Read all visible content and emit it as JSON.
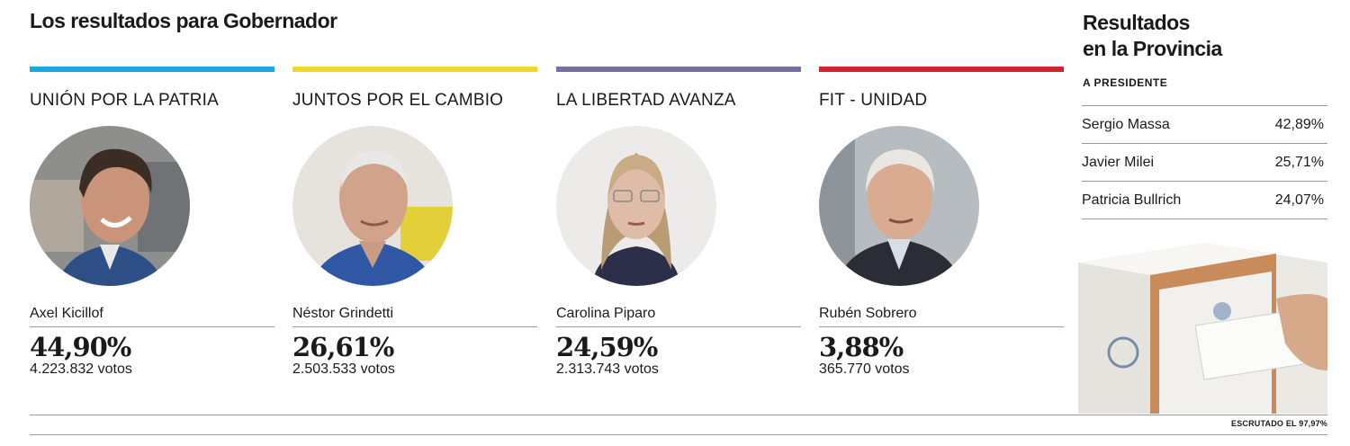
{
  "header": {
    "title": "Los resultados para Gobernador"
  },
  "candidates": [
    {
      "party": "UNIÓN POR LA PATRIA",
      "color": "#1ba9dc",
      "name": "Axel Kicillof",
      "pct": "44,90%",
      "votes": "4.223.832 votos"
    },
    {
      "party": "JUNTOS POR EL CAMBIO",
      "color": "#f3d927",
      "name": "Néstor Grindetti",
      "pct": "26,61%",
      "votes": "2.503.533 votos"
    },
    {
      "party": "LA LIBERTAD AVANZA",
      "color": "#7a6ea3",
      "name": "Carolina Piparo",
      "pct": "24,59%",
      "votes": "2.313.743 votos"
    },
    {
      "party": "FIT - UNIDAD",
      "color": "#d3242b",
      "name": "Rubén Sobrero",
      "pct": "3,88%",
      "votes": "365.770 votos"
    }
  ],
  "sidebar": {
    "title_line1": "Resultados",
    "title_line2": "en la Provincia",
    "subtitle": "A PRESIDENTE",
    "rows": [
      {
        "name": "Sergio Massa",
        "pct": "42,89%"
      },
      {
        "name": "Javier Milei",
        "pct": "25,71%"
      },
      {
        "name": "Patricia Bullrich",
        "pct": "24,07%"
      }
    ]
  },
  "footer": {
    "escrutado": "ESCRUTADO EL 97,97%"
  },
  "chart_data": {
    "type": "table",
    "title": "Los resultados para Gobernador",
    "categories": [
      "UNIÓN POR LA PATRIA",
      "JUNTOS POR EL CAMBIO",
      "LA LIBERTAD AVANZA",
      "FIT - UNIDAD"
    ],
    "series": [
      {
        "values": [
          44.9,
          26.61,
          24.59,
          3.88
        ]
      },
      {
        "values": [
          4223832,
          2503533,
          2313743,
          365770
        ]
      }
    ],
    "secondary": {
      "title": "Resultados en la Provincia — A PRESIDENTE",
      "categories": [
        "Sergio Massa",
        "Javier Milei",
        "Patricia Bullrich"
      ],
      "values": [
        42.89,
        25.71,
        24.07
      ]
    }
  }
}
